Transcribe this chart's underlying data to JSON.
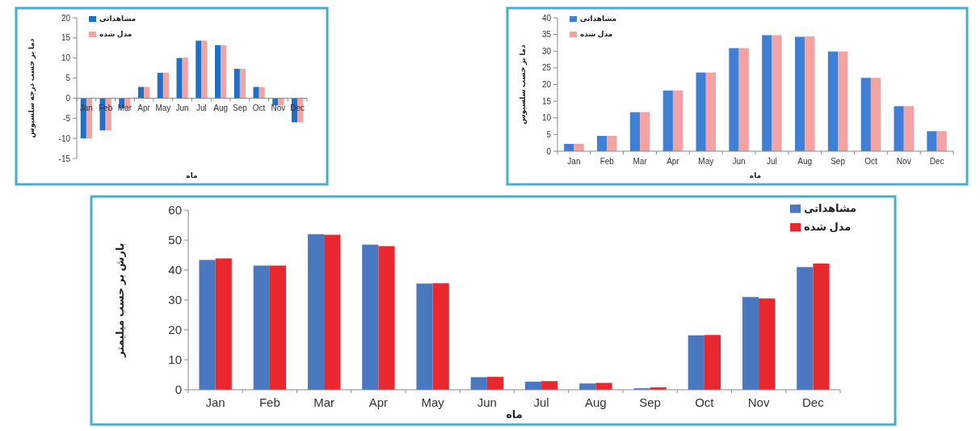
{
  "chart_data": [
    {
      "type": "bar",
      "xlabel": "ماه",
      "ylabel": "دما بر حسب درجه سلسیوس",
      "categories": [
        "Jan",
        "Feb",
        "Mar",
        "Apr",
        "May",
        "Jun",
        "Jul",
        "Aug",
        "Sep",
        "Oct",
        "Nov",
        "Dec"
      ],
      "ylim": [
        -15,
        20
      ],
      "yticks": [
        -15,
        -10,
        -5,
        0,
        5,
        10,
        15,
        20
      ],
      "legend": "top left",
      "series": [
        {
          "name": "مشاهداتی",
          "color": "#1f6fc4",
          "values": [
            -10,
            -8,
            -2.5,
            2.8,
            6.3,
            10,
            14.3,
            13.2,
            7.3,
            2.8,
            -1.8,
            -6
          ]
        },
        {
          "name": "مدل شده",
          "color": "#f4a3a3",
          "values": [
            -10,
            -8,
            -2.5,
            2.8,
            6.3,
            10.1,
            14.3,
            13.2,
            7.3,
            2.8,
            -1.8,
            -6
          ]
        }
      ]
    },
    {
      "type": "bar",
      "xlabel": "ماه",
      "ylabel": "دما بر حسب سلسیوس",
      "categories": [
        "Jan",
        "Feb",
        "Mar",
        "Apr",
        "May",
        "Jun",
        "Jul",
        "Aug",
        "Sep",
        "Oct",
        "Nov",
        "Dec"
      ],
      "ylim": [
        0,
        40
      ],
      "yticks": [
        0,
        5,
        10,
        15,
        20,
        25,
        30,
        35,
        40
      ],
      "legend": "top left",
      "series": [
        {
          "name": "مشاهداتی",
          "color": "#3f7fd6",
          "values": [
            2.2,
            4.6,
            11.7,
            18.2,
            23.6,
            30.9,
            34.8,
            34.3,
            29.9,
            22,
            13.5,
            6
          ]
        },
        {
          "name": "مدل شده",
          "color": "#f4a3a3",
          "values": [
            2.2,
            4.6,
            11.7,
            18.2,
            23.6,
            30.9,
            34.8,
            34.4,
            29.9,
            22,
            13.5,
            6
          ]
        }
      ]
    },
    {
      "type": "bar",
      "xlabel": "ماه",
      "ylabel": "بارش بر حسب میلیمتر",
      "categories": [
        "Jan",
        "Feb",
        "Mar",
        "Apr",
        "May",
        "Jun",
        "Jul",
        "Aug",
        "Sep",
        "Oct",
        "Nov",
        "Dec"
      ],
      "ylim": [
        0,
        60
      ],
      "yticks": [
        0,
        10,
        20,
        30,
        40,
        50,
        60
      ],
      "legend": "top right",
      "series": [
        {
          "name": "مشاهداتی",
          "color": "#4a78c0",
          "values": [
            43.4,
            41.5,
            52,
            48.5,
            35.5,
            4.2,
            2.7,
            2.1,
            0.5,
            18.2,
            31,
            41
          ]
        },
        {
          "name": "مدل شده",
          "color": "#e8282e",
          "values": [
            43.9,
            41.5,
            51.8,
            48,
            35.6,
            4.3,
            2.9,
            2.3,
            0.8,
            18.3,
            30.5,
            42.2
          ]
        }
      ]
    }
  ]
}
